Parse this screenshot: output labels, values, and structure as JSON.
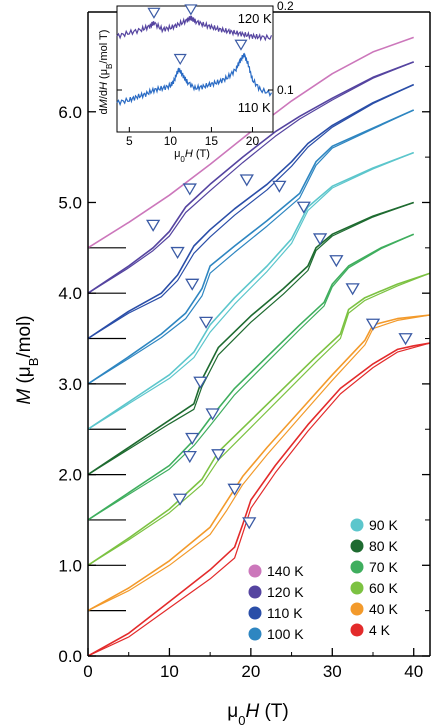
{
  "chart_data": [
    {
      "type": "line",
      "title": "",
      "xlabel": {
        "prefix": "μ",
        "prefix_sub": "0",
        "var": "H",
        "unit": " (T)"
      },
      "ylabel": {
        "var": "M",
        "unit_open": " (μ",
        "unit_sub": "B",
        "unit_close": "/mol)"
      },
      "xlim": [
        0,
        42
      ],
      "ylim": [
        0.0,
        7.1
      ],
      "x_ticks": [
        "0",
        "10",
        "20",
        "30",
        "40"
      ],
      "x_tick_values": [
        0,
        10,
        20,
        30,
        40
      ],
      "y_ticks": [
        "0.0",
        "1.0",
        "2.0",
        "3.0",
        "4.0",
        "5.0",
        "6.0"
      ],
      "y_tick_values": [
        0,
        1,
        2,
        3,
        4,
        5,
        6
      ],
      "legend_position": "bottom-right",
      "legend": [
        {
          "label": "140 K",
          "color": "#cc77bb",
          "column": 0
        },
        {
          "label": "120 K",
          "color": "#5544a0",
          "column": 0
        },
        {
          "label": "110 K",
          "color": "#2a4ea8",
          "column": 0
        },
        {
          "label": "100 K",
          "color": "#2e86c1",
          "column": 0
        },
        {
          "label": "90 K",
          "color": "#5cc6cc",
          "column": 1
        },
        {
          "label": "80 K",
          "color": "#1e6b30",
          "column": 1
        },
        {
          "label": "70 K",
          "color": "#3fae5e",
          "column": 1
        },
        {
          "label": "60 K",
          "color": "#7cc242",
          "column": 1
        },
        {
          "label": "40 K",
          "color": "#f39a2b",
          "column": 1
        },
        {
          "label": "4 K",
          "color": "#e32b2b",
          "column": 1
        }
      ],
      "series": [
        {
          "name": "140 K",
          "color": "#cc77bb",
          "offset": 4.5,
          "x": [
            0,
            5,
            10,
            15,
            20,
            25,
            30,
            35,
            40
          ],
          "y": [
            4.5,
            4.78,
            5.08,
            5.42,
            5.78,
            6.12,
            6.42,
            6.66,
            6.82
          ]
        },
        {
          "name": "120 K",
          "color": "#5544a0",
          "offset": 4.0,
          "x": [
            0,
            5,
            8,
            10,
            12,
            15,
            19,
            23,
            26,
            30,
            35,
            40
          ],
          "y": [
            4.0,
            4.3,
            4.5,
            4.68,
            4.95,
            5.2,
            5.5,
            5.78,
            5.95,
            6.15,
            6.38,
            6.55
          ],
          "hysteresis": [
            0,
            0.02,
            0.03,
            0.05,
            0.06,
            0.07,
            0.06,
            0.05,
            0.03,
            0.02,
            0.01,
            0
          ]
        },
        {
          "name": "110 K",
          "color": "#2a4ea8",
          "offset": 3.5,
          "x": [
            0,
            5,
            9,
            11,
            13,
            15,
            18,
            22,
            25,
            27,
            30,
            35,
            40
          ],
          "y": [
            3.5,
            3.8,
            4.0,
            4.2,
            4.52,
            4.7,
            4.93,
            5.2,
            5.45,
            5.65,
            5.85,
            6.1,
            6.3
          ],
          "hysteresis": [
            0,
            0.02,
            0.04,
            0.06,
            0.08,
            0.08,
            0.07,
            0.06,
            0.05,
            0.04,
            0.02,
            0.01,
            0
          ]
        },
        {
          "name": "100 K",
          "color": "#2e86c1",
          "offset": 3.0,
          "x": [
            0,
            5,
            9,
            12,
            14,
            15,
            18,
            22,
            26,
            28,
            30,
            35,
            40
          ],
          "y": [
            3.0,
            3.3,
            3.55,
            3.78,
            4.05,
            4.3,
            4.52,
            4.8,
            5.1,
            5.45,
            5.62,
            5.82,
            6.02
          ],
          "hysteresis": [
            0,
            0.02,
            0.04,
            0.06,
            0.08,
            0.08,
            0.07,
            0.06,
            0.05,
            0.04,
            0.02,
            0.01,
            0
          ]
        },
        {
          "name": "90 K",
          "color": "#5cc6cc",
          "offset": 2.5,
          "x": [
            0,
            5,
            10,
            13,
            15,
            18,
            22,
            25,
            27,
            30,
            35,
            40
          ],
          "y": [
            2.5,
            2.8,
            3.1,
            3.35,
            3.65,
            3.95,
            4.3,
            4.6,
            4.95,
            5.18,
            5.38,
            5.55
          ],
          "hysteresis": [
            0,
            0.02,
            0.04,
            0.06,
            0.08,
            0.07,
            0.06,
            0.05,
            0.04,
            0.02,
            0.01,
            0
          ]
        },
        {
          "name": "80 K",
          "color": "#1e6b30",
          "offset": 2.0,
          "x": [
            0,
            5,
            10,
            13,
            14,
            16,
            20,
            24,
            27,
            28,
            30,
            35,
            40
          ],
          "y": [
            2.0,
            2.3,
            2.6,
            2.78,
            3.05,
            3.4,
            3.75,
            4.05,
            4.3,
            4.5,
            4.65,
            4.85,
            5.0
          ],
          "hysteresis": [
            0,
            0.02,
            0.04,
            0.06,
            0.08,
            0.08,
            0.07,
            0.06,
            0.05,
            0.03,
            0.02,
            0.01,
            0
          ]
        },
        {
          "name": "70 K",
          "color": "#3fae5e",
          "offset": 1.5,
          "x": [
            0,
            5,
            10,
            13,
            15,
            18,
            22,
            26,
            29,
            30,
            32,
            36,
            40
          ],
          "y": [
            1.5,
            1.8,
            2.1,
            2.38,
            2.62,
            2.95,
            3.3,
            3.65,
            3.9,
            4.1,
            4.3,
            4.5,
            4.65
          ],
          "hysteresis": [
            0,
            0.02,
            0.04,
            0.06,
            0.08,
            0.07,
            0.06,
            0.05,
            0.04,
            0.03,
            0.02,
            0.01,
            0
          ]
        },
        {
          "name": "60 K",
          "color": "#7cc242",
          "offset": 1.0,
          "x": [
            0,
            5,
            10,
            14,
            16,
            20,
            24,
            28,
            31,
            32,
            34,
            38,
            42
          ],
          "y": [
            1.0,
            1.3,
            1.62,
            1.95,
            2.25,
            2.6,
            2.95,
            3.3,
            3.55,
            3.82,
            3.95,
            4.1,
            4.22
          ],
          "hysteresis": [
            0,
            0.02,
            0.04,
            0.06,
            0.09,
            0.08,
            0.07,
            0.06,
            0.05,
            0.04,
            0.03,
            0.02,
            0
          ]
        },
        {
          "name": "40 K",
          "color": "#f39a2b",
          "offset": 0.5,
          "x": [
            0,
            5,
            10,
            15,
            17,
            19,
            22,
            26,
            30,
            34,
            35,
            38,
            42
          ],
          "y": [
            0.5,
            0.75,
            1.05,
            1.42,
            1.7,
            1.98,
            2.3,
            2.7,
            3.1,
            3.48,
            3.65,
            3.72,
            3.76
          ],
          "hysteresis": [
            0,
            0.03,
            0.05,
            0.08,
            0.1,
            0.09,
            0.08,
            0.07,
            0.06,
            0.05,
            0.04,
            0.02,
            0
          ]
        },
        {
          "name": "4 K",
          "color": "#e32b2b",
          "offset": 0.0,
          "x": [
            0,
            5,
            10,
            15,
            18,
            19,
            20,
            23,
            27,
            31,
            35,
            38,
            40,
            42
          ],
          "y": [
            0.0,
            0.25,
            0.6,
            0.95,
            1.2,
            1.45,
            1.72,
            2.1,
            2.55,
            2.95,
            3.22,
            3.38,
            3.42,
            3.45
          ],
          "hysteresis": [
            0,
            0.04,
            0.07,
            0.1,
            0.12,
            0.1,
            0.09,
            0.08,
            0.07,
            0.06,
            0.04,
            0.03,
            0.02,
            0
          ]
        }
      ],
      "markers": [
        {
          "x": 8.0,
          "y": 4.75
        },
        {
          "x": 12.5,
          "y": 5.15
        },
        {
          "x": 19.5,
          "y": 5.25
        },
        {
          "x": 23.5,
          "y": 5.18
        },
        {
          "x": 26.5,
          "y": 4.95
        },
        {
          "x": 11.0,
          "y": 4.45
        },
        {
          "x": 12.8,
          "y": 4.1
        },
        {
          "x": 14.5,
          "y": 3.68
        },
        {
          "x": 28.5,
          "y": 4.6
        },
        {
          "x": 30.5,
          "y": 4.36
        },
        {
          "x": 13.8,
          "y": 3.02
        },
        {
          "x": 15.3,
          "y": 2.67
        },
        {
          "x": 12.8,
          "y": 2.4
        },
        {
          "x": 12.5,
          "y": 2.2
        },
        {
          "x": 16.0,
          "y": 2.22
        },
        {
          "x": 32.5,
          "y": 4.05
        },
        {
          "x": 11.3,
          "y": 1.73
        },
        {
          "x": 18.0,
          "y": 1.84
        },
        {
          "x": 19.8,
          "y": 1.47
        },
        {
          "x": 35.0,
          "y": 3.66
        },
        {
          "x": 39.0,
          "y": 3.5
        }
      ],
      "offset_marks": [
        0.5,
        1.0,
        1.5,
        2.0,
        2.5,
        3.0,
        3.5,
        4.0,
        4.5
      ]
    },
    {
      "type": "line",
      "title": "",
      "xlabel": {
        "prefix": "μ",
        "prefix_sub": "0",
        "var": "H",
        "unit": " (T)"
      },
      "ylabel": {
        "pre": "d",
        "var": "M",
        "mid": "/d",
        "var2": "H",
        "unit_open": " (μ",
        "unit_sub": "B",
        "unit_close": "/mol T)"
      },
      "xlim": [
        3.5,
        22.5
      ],
      "ylim": [
        0.05,
        0.2
      ],
      "x_ticks": [
        "5",
        "10",
        "15",
        "20"
      ],
      "x_tick_values": [
        5,
        10,
        15,
        20
      ],
      "y_ticks": [
        "0.1",
        "0.2"
      ],
      "y_tick_values": [
        0.1,
        0.2
      ],
      "series": [
        {
          "name": "120 K",
          "color": "#5544a0",
          "x": [
            3.5,
            5,
            6.5,
            7.5,
            8,
            9,
            10,
            11,
            12,
            12.5,
            13,
            14,
            15,
            16,
            17,
            18,
            19,
            20,
            21,
            22.5
          ],
          "y": [
            0.164,
            0.168,
            0.172,
            0.176,
            0.18,
            0.172,
            0.174,
            0.178,
            0.183,
            0.186,
            0.182,
            0.178,
            0.175,
            0.172,
            0.17,
            0.168,
            0.166,
            0.164,
            0.163,
            0.162
          ]
        },
        {
          "name": "110 K",
          "color": "#2a6bc4",
          "x": [
            3.5,
            5,
            6,
            7,
            8,
            9,
            10,
            10.5,
            11,
            11.5,
            12,
            13,
            14,
            15,
            16,
            17,
            18,
            18.5,
            19,
            19.5,
            20,
            21,
            22.5
          ],
          "y": [
            0.085,
            0.088,
            0.092,
            0.095,
            0.1,
            0.102,
            0.105,
            0.112,
            0.125,
            0.118,
            0.11,
            0.102,
            0.104,
            0.107,
            0.11,
            0.115,
            0.125,
            0.135,
            0.142,
            0.13,
            0.112,
            0.1,
            0.095
          ]
        }
      ],
      "markers": [
        {
          "x": 8.0,
          "y": 0.192
        },
        {
          "x": 12.5,
          "y": 0.196
        },
        {
          "x": 11.2,
          "y": 0.137
        },
        {
          "x": 18.6,
          "y": 0.154
        }
      ],
      "labels": [
        {
          "text": "120 K",
          "x": 18.2,
          "y": 0.18
        },
        {
          "text": "110 K",
          "x": 18.2,
          "y": 0.074
        }
      ]
    }
  ],
  "colors": {
    "marker": "#3b5ba5",
    "axis": "#000000"
  }
}
